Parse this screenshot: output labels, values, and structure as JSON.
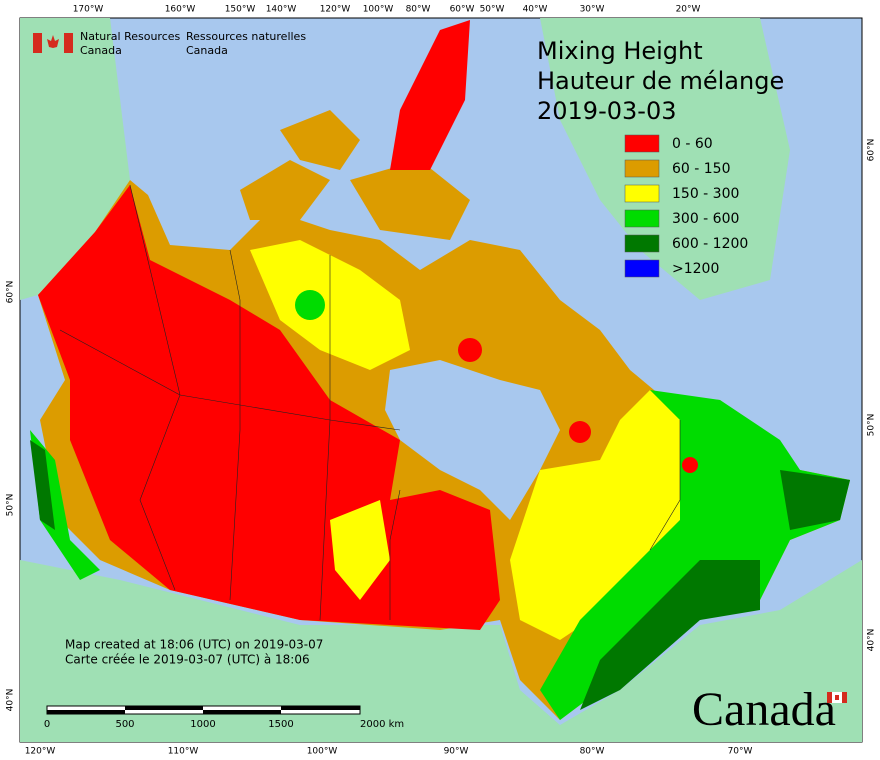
{
  "agency": {
    "en": [
      "Natural Resources",
      "Canada"
    ],
    "fr": [
      "Ressources naturelles",
      "Canada"
    ]
  },
  "title": [
    "Mixing Height",
    "Hauteur de mélange",
    "2019-03-03"
  ],
  "legend": [
    {
      "label": "0 - 60",
      "color": "#ff0000"
    },
    {
      "label": "60 - 150",
      "color": "#dc9c00"
    },
    {
      "label": "150 - 300",
      "color": "#ffff00"
    },
    {
      "label": "300 - 600",
      "color": "#00dc00"
    },
    {
      "label": "600 - 1200",
      "color": "#007800"
    },
    {
      "label": ">1200",
      "color": "#0000ff"
    }
  ],
  "credits": [
    "Map created at 18:06 (UTC) on 2019-03-07",
    "Carte créée le 2019-03-07 (UTC) à 18:06"
  ],
  "scale_bar": [
    "0",
    "500",
    "1000",
    "1500",
    "2000 km"
  ],
  "graticule": {
    "top": [
      "170°W",
      "160°W",
      "150°W",
      "140°W",
      "120°W",
      "100°W",
      "80°W",
      "60°W",
      "50°W",
      "40°W",
      "30°W",
      "20°W"
    ],
    "bottom": [
      "120°W",
      "110°W",
      "100°W",
      "90°W",
      "80°W",
      "70°W"
    ],
    "left": [
      "60°N",
      "50°N",
      "40°N"
    ],
    "right": [
      "60°N",
      "50°N",
      "40°N"
    ]
  },
  "wordmark": "Canada"
}
